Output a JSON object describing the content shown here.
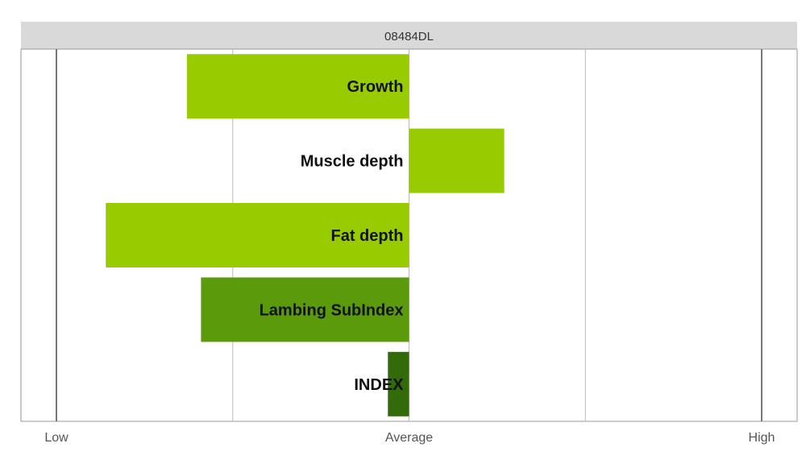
{
  "chart_data": {
    "type": "bar",
    "orientation": "horizontal",
    "title": "08484DL",
    "categories": [
      "Growth",
      "Muscle depth",
      "Fat depth",
      "Lambing SubIndex",
      "INDEX"
    ],
    "values": [
      -0.63,
      0.27,
      -0.86,
      -0.59,
      -0.06
    ],
    "bar_colors": [
      "#99cc00",
      "#99cc00",
      "#99cc00",
      "#5a9a0b",
      "#336a0a"
    ],
    "xlim": [
      -1,
      1
    ],
    "x_ticks": [
      {
        "value": -1,
        "label": "Low"
      },
      {
        "value": 0,
        "label": "Average"
      },
      {
        "value": 1,
        "label": "High"
      }
    ],
    "gridlines": [
      -1,
      -0.5,
      0,
      0.5,
      1
    ],
    "grid": true,
    "legend": "none"
  }
}
